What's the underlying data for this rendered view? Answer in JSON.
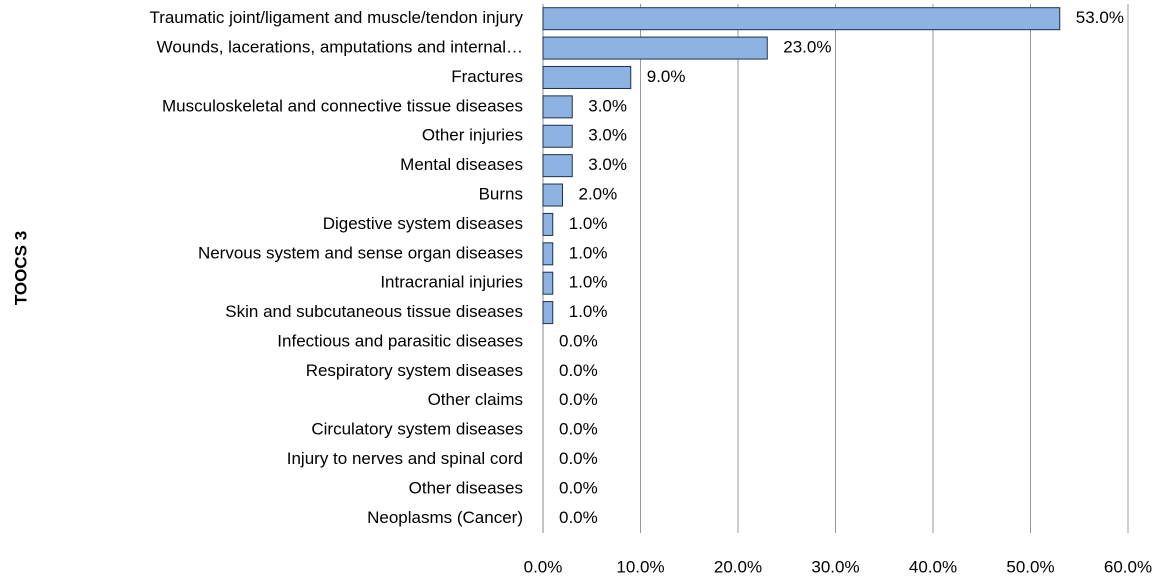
{
  "chart_data": {
    "type": "barh",
    "ylabel": "TOOCS 3",
    "categories": [
      "Traumatic joint/ligament and muscle/tendon injury",
      "Wounds, lacerations, amputations and internal…",
      "Fractures",
      "Musculoskeletal and connective tissue diseases",
      "Other injuries",
      "Mental diseases",
      "Burns",
      "Digestive system diseases",
      "Nervous system and sense organ diseases",
      "Intracranial injuries",
      "Skin and subcutaneous tissue diseases",
      "Infectious and parasitic diseases",
      "Respiratory system diseases",
      "Other claims",
      "Circulatory system diseases",
      "Injury to nerves and spinal cord",
      "Other diseases",
      "Neoplasms (Cancer)"
    ],
    "values": [
      53,
      23,
      9,
      3,
      3,
      3,
      2,
      1,
      1,
      1,
      1,
      0,
      0,
      0,
      0,
      0,
      0,
      0
    ],
    "value_labels": [
      "53.0%",
      "23.0%",
      "9.0%",
      "3.0%",
      "3.0%",
      "3.0%",
      "2.0%",
      "1.0%",
      "1.0%",
      "1.0%",
      "1.0%",
      "0.0%",
      "0.0%",
      "0.0%",
      "0.0%",
      "0.0%",
      "0.0%",
      "0.0%"
    ],
    "color": "#8db3e2",
    "xlim": [
      0,
      60
    ],
    "xticks": [
      {
        "value": 0,
        "label": "0.0%"
      },
      {
        "value": 10,
        "label": "10.0%"
      },
      {
        "value": 20,
        "label": "20.0%"
      },
      {
        "value": 30,
        "label": "30.0%"
      },
      {
        "value": 40,
        "label": "40.0%"
      },
      {
        "value": 50,
        "label": "50.0%"
      },
      {
        "value": 60,
        "label": "60.0%"
      }
    ],
    "grid": true
  }
}
